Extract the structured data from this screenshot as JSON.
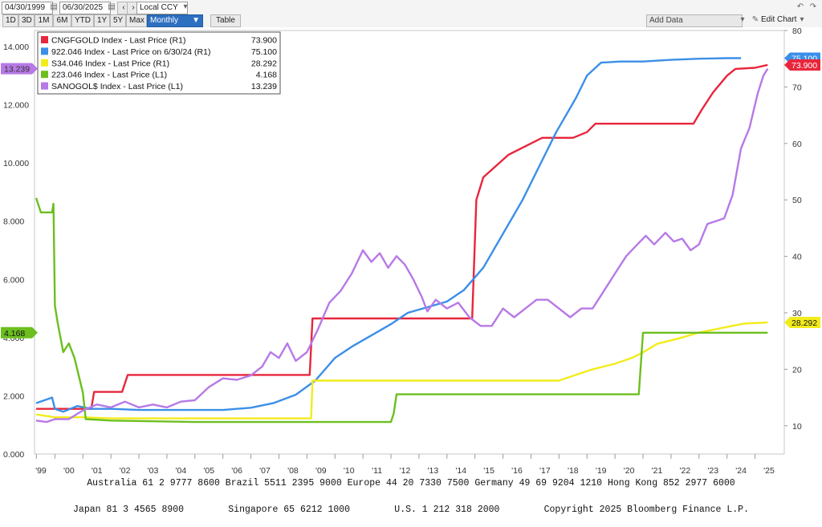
{
  "toolbar": {
    "start_date": "04/30/1999",
    "end_date": "06/30/2025",
    "currency": "Local CCY",
    "periods": [
      "1D",
      "3D",
      "1M",
      "6M",
      "YTD",
      "1Y",
      "5Y",
      "Max"
    ],
    "frequency": "Monthly",
    "table_label": "Table",
    "add_data_placeholder": "Add Data",
    "edit_chart_label": "Edit Chart"
  },
  "chart_data": {
    "type": "line",
    "x_ticks": [
      "'99",
      "'00",
      "'01",
      "'02",
      "'03",
      "'04",
      "'05",
      "'06",
      "'07",
      "'08",
      "'09",
      "'10",
      "'11",
      "'12",
      "'13",
      "'14",
      "'15",
      "'16",
      "'17",
      "'18",
      "'19",
      "'20",
      "'21",
      "'22",
      "'23",
      "'24",
      "'25"
    ],
    "left_axis": {
      "ylim": [
        0,
        14
      ],
      "ticks": [
        "0.000",
        "2.000",
        "4.000",
        "6.000",
        "8.000",
        "10.000",
        "12.000",
        "14.000"
      ]
    },
    "right_axis": {
      "ylim": [
        5,
        80
      ],
      "ticks": [
        "10",
        "20",
        "30",
        "40",
        "50",
        "60",
        "70",
        "80"
      ]
    },
    "legend": [
      {
        "label": "CNGFGOLD Index - Last Price (R1)",
        "value": "73.900",
        "color": "#e8263c"
      },
      {
        "label": "922.046 Index - Last Price on 6/30/24 (R1)",
        "value": "75.100",
        "color": "#3b8fe8"
      },
      {
        "label": "S34.046 Index - Last Price (R1)",
        "value": "28.292",
        "color": "#f2ec1c"
      },
      {
        "label": "223.046 Index - Last Price (L1)",
        "value": "4.168",
        "color": "#6cbf1f"
      },
      {
        "label": "SANOGOL$ Index - Last Price (L1)",
        "value": "13.239",
        "color": "#b779e6"
      }
    ],
    "series": [
      {
        "name": "CNGFGOLD Index",
        "axis": "right",
        "color": "#e8263c",
        "points": [
          [
            1999.33,
            13
          ],
          [
            2001.3,
            13
          ],
          [
            2001.4,
            16
          ],
          [
            2002.4,
            16
          ],
          [
            2002.6,
            19
          ],
          [
            2009.1,
            19
          ],
          [
            2009.2,
            29
          ],
          [
            2014.9,
            29
          ],
          [
            2015.05,
            50
          ],
          [
            2015.3,
            54
          ],
          [
            2016.2,
            58
          ],
          [
            2017.0,
            60
          ],
          [
            2017.4,
            61
          ],
          [
            2018.5,
            61
          ],
          [
            2019.0,
            62
          ],
          [
            2019.3,
            63.5
          ],
          [
            2021.5,
            63.5
          ],
          [
            2022.0,
            63.5
          ],
          [
            2022.8,
            63.5
          ],
          [
            2023.1,
            66
          ],
          [
            2023.5,
            69
          ],
          [
            2024.0,
            72
          ],
          [
            2024.3,
            73.2
          ],
          [
            2025.0,
            73.4
          ],
          [
            2025.45,
            73.9
          ]
        ]
      },
      {
        "name": "922.046 Index",
        "axis": "right",
        "color": "#3b8fe8",
        "points": [
          [
            1999.33,
            14
          ],
          [
            1999.9,
            15
          ],
          [
            2000.0,
            13
          ],
          [
            2000.3,
            12.5
          ],
          [
            2000.8,
            13.5
          ],
          [
            2001.3,
            13
          ],
          [
            2002.0,
            13
          ],
          [
            2003.0,
            12.8
          ],
          [
            2004.0,
            12.8
          ],
          [
            2005.0,
            12.8
          ],
          [
            2006.0,
            12.8
          ],
          [
            2007.0,
            13.2
          ],
          [
            2007.8,
            14
          ],
          [
            2008.6,
            15.5
          ],
          [
            2009.3,
            18
          ],
          [
            2010.0,
            22
          ],
          [
            2010.6,
            24
          ],
          [
            2011.3,
            26
          ],
          [
            2012.0,
            28
          ],
          [
            2012.6,
            30
          ],
          [
            2013.3,
            31
          ],
          [
            2014.0,
            32
          ],
          [
            2014.6,
            34
          ],
          [
            2015.3,
            38
          ],
          [
            2016.0,
            44
          ],
          [
            2016.7,
            50
          ],
          [
            2017.3,
            56
          ],
          [
            2017.9,
            62
          ],
          [
            2018.6,
            68
          ],
          [
            2019.0,
            72
          ],
          [
            2019.5,
            74.3
          ],
          [
            2020.2,
            74.5
          ],
          [
            2021.0,
            74.5
          ],
          [
            2022.0,
            74.8
          ],
          [
            2023.0,
            75.0
          ],
          [
            2024.0,
            75.1
          ],
          [
            2024.5,
            75.1
          ]
        ]
      },
      {
        "name": "S34.046 Index",
        "axis": "right",
        "color": "#f2ec1c",
        "points": [
          [
            1999.33,
            12
          ],
          [
            2000.0,
            11.5
          ],
          [
            2001.0,
            11.5
          ],
          [
            2002.0,
            11.3
          ],
          [
            2005.0,
            11.3
          ],
          [
            2009.0,
            11.3
          ],
          [
            2009.15,
            11.3
          ],
          [
            2009.2,
            18
          ],
          [
            2014.0,
            18
          ],
          [
            2017.0,
            18
          ],
          [
            2018.0,
            18
          ],
          [
            2018.6,
            19
          ],
          [
            2019.2,
            20
          ],
          [
            2020.0,
            21
          ],
          [
            2020.6,
            22
          ],
          [
            2021.0,
            23
          ],
          [
            2021.5,
            24.5
          ],
          [
            2022.3,
            25.5
          ],
          [
            2023.0,
            26.5
          ],
          [
            2024.0,
            27.5
          ],
          [
            2024.6,
            28.1
          ],
          [
            2025.45,
            28.292
          ]
        ]
      },
      {
        "name": "223.046 Index",
        "axis": "left",
        "color": "#6cbf1f",
        "points": [
          [
            1999.33,
            8.8
          ],
          [
            1999.5,
            8.3
          ],
          [
            1999.9,
            8.3
          ],
          [
            1999.95,
            8.6
          ],
          [
            2000.0,
            5.1
          ],
          [
            2000.1,
            4.5
          ],
          [
            2000.3,
            3.5
          ],
          [
            2000.5,
            3.8
          ],
          [
            2000.7,
            3.3
          ],
          [
            2001.0,
            2.1
          ],
          [
            2001.1,
            1.2
          ],
          [
            2002.0,
            1.15
          ],
          [
            2005.0,
            1.1
          ],
          [
            2009.0,
            1.1
          ],
          [
            2012.0,
            1.1
          ],
          [
            2012.1,
            1.4
          ],
          [
            2012.2,
            2.05
          ],
          [
            2015.0,
            2.05
          ],
          [
            2018.0,
            2.05
          ],
          [
            2020.0,
            2.05
          ],
          [
            2020.85,
            2.05
          ],
          [
            2021.0,
            4.168
          ],
          [
            2025.45,
            4.168
          ]
        ]
      },
      {
        "name": "SANOGOL$ Index",
        "axis": "left",
        "color": "#b779e6",
        "points": [
          [
            1999.33,
            1.15
          ],
          [
            1999.7,
            1.1
          ],
          [
            2000.0,
            1.2
          ],
          [
            2000.5,
            1.2
          ],
          [
            2001.0,
            1.5
          ],
          [
            2001.5,
            1.7
          ],
          [
            2002.0,
            1.6
          ],
          [
            2002.5,
            1.8
          ],
          [
            2003.0,
            1.6
          ],
          [
            2003.5,
            1.7
          ],
          [
            2004.0,
            1.6
          ],
          [
            2004.5,
            1.8
          ],
          [
            2005.0,
            1.85
          ],
          [
            2005.5,
            2.3
          ],
          [
            2006.0,
            2.6
          ],
          [
            2006.5,
            2.55
          ],
          [
            2007.0,
            2.7
          ],
          [
            2007.4,
            3.0
          ],
          [
            2007.7,
            3.5
          ],
          [
            2008.0,
            3.3
          ],
          [
            2008.3,
            3.8
          ],
          [
            2008.6,
            3.2
          ],
          [
            2009.0,
            3.5
          ],
          [
            2009.4,
            4.3
          ],
          [
            2009.8,
            5.2
          ],
          [
            2010.2,
            5.6
          ],
          [
            2010.6,
            6.2
          ],
          [
            2011.0,
            7.0
          ],
          [
            2011.3,
            6.6
          ],
          [
            2011.6,
            6.9
          ],
          [
            2011.9,
            6.4
          ],
          [
            2012.2,
            6.8
          ],
          [
            2012.5,
            6.5
          ],
          [
            2012.8,
            6.0
          ],
          [
            2013.1,
            5.4
          ],
          [
            2013.3,
            4.9
          ],
          [
            2013.6,
            5.3
          ],
          [
            2014.0,
            5.0
          ],
          [
            2014.4,
            5.2
          ],
          [
            2014.8,
            4.7
          ],
          [
            2015.2,
            4.4
          ],
          [
            2015.6,
            4.4
          ],
          [
            2016.0,
            5.0
          ],
          [
            2016.4,
            4.7
          ],
          [
            2016.8,
            5.0
          ],
          [
            2017.2,
            5.3
          ],
          [
            2017.6,
            5.3
          ],
          [
            2018.0,
            5.0
          ],
          [
            2018.4,
            4.7
          ],
          [
            2018.8,
            5.0
          ],
          [
            2019.2,
            5.0
          ],
          [
            2019.6,
            5.6
          ],
          [
            2020.0,
            6.2
          ],
          [
            2020.4,
            6.8
          ],
          [
            2020.8,
            7.2
          ],
          [
            2021.1,
            7.5
          ],
          [
            2021.4,
            7.2
          ],
          [
            2021.8,
            7.6
          ],
          [
            2022.1,
            7.3
          ],
          [
            2022.4,
            7.4
          ],
          [
            2022.7,
            7.0
          ],
          [
            2023.0,
            7.2
          ],
          [
            2023.3,
            7.9
          ],
          [
            2023.6,
            8.0
          ],
          [
            2023.9,
            8.1
          ],
          [
            2024.2,
            8.9
          ],
          [
            2024.5,
            10.5
          ],
          [
            2024.8,
            11.2
          ],
          [
            2025.1,
            12.4
          ],
          [
            2025.3,
            13.0
          ],
          [
            2025.45,
            13.239
          ]
        ]
      }
    ],
    "badges": [
      {
        "axis": "left",
        "value": 13.239,
        "text": "13.239",
        "color": "#b779e6",
        "text_color": "#333"
      },
      {
        "axis": "left",
        "value": 4.168,
        "text": "4.168",
        "color": "#6cbf1f",
        "text_color": "#111"
      },
      {
        "axis": "right",
        "value": 75.1,
        "text": "75.100",
        "color": "#3b8fe8",
        "text_color": "#fff"
      },
      {
        "axis": "right",
        "value": 73.9,
        "text": "73.900",
        "color": "#e8263c",
        "text_color": "#fff"
      },
      {
        "axis": "right",
        "value": 28.292,
        "text": "28.292",
        "color": "#f2ec1c",
        "text_color": "#111"
      }
    ]
  },
  "footer": {
    "line1": "Australia 61 2 9777 8600 Brazil 5511 2395 9000 Europe 44 20 7330 7500 Germany 49 69 9204 1210 Hong Kong 852 2977 6000",
    "line2": "Japan 81 3 4565 8900        Singapore 65 6212 1000        U.S. 1 212 318 2000        Copyright 2025 Bloomberg Finance L.P."
  }
}
